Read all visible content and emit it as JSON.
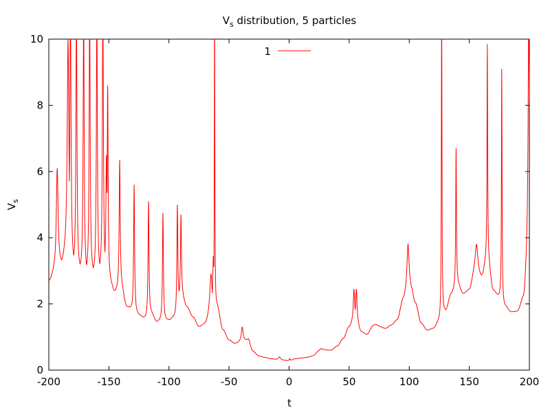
{
  "chart_data": {
    "type": "line",
    "title": "V",
    "title_sub": "s",
    "title_rest": " distribution, 5 particles",
    "xlabel": "t",
    "ylabel": "V",
    "ylabel_sub": "s",
    "xlim": [
      -200,
      200
    ],
    "ylim": [
      0,
      10
    ],
    "xticks": [
      -200,
      -150,
      -100,
      -50,
      0,
      50,
      100,
      150,
      200
    ],
    "yticks": [
      0,
      2,
      4,
      6,
      8,
      10
    ],
    "grid": false,
    "legend_position": "top-center",
    "color": "#ff0000",
    "base_points": [
      [
        -200,
        2.65
      ],
      [
        -195,
        2.9
      ],
      [
        -190,
        3.15
      ],
      [
        -185,
        3.5
      ],
      [
        -180,
        3.1
      ],
      [
        -175,
        3.0
      ],
      [
        -170,
        2.85
      ],
      [
        -165,
        2.9
      ],
      [
        -160,
        2.8
      ],
      [
        -155,
        3.0
      ],
      [
        -150,
        2.7
      ],
      [
        -145,
        2.35
      ],
      [
        -140,
        2.5
      ],
      [
        -135,
        1.9
      ],
      [
        -130,
        1.8
      ],
      [
        -125,
        1.65
      ],
      [
        -120,
        1.55
      ],
      [
        -115,
        1.7
      ],
      [
        -110,
        1.45
      ],
      [
        -105,
        1.5
      ],
      [
        -100,
        1.5
      ],
      [
        -95,
        1.6
      ],
      [
        -90,
        2.3
      ],
      [
        -85,
        1.9
      ],
      [
        -80,
        1.6
      ],
      [
        -75,
        1.3
      ],
      [
        -70,
        1.35
      ],
      [
        -65,
        1.6
      ],
      [
        -60,
        1.9
      ],
      [
        -55,
        1.2
      ],
      [
        -50,
        0.9
      ],
      [
        -45,
        0.8
      ],
      [
        -40,
        0.85
      ],
      [
        -35,
        0.9
      ],
      [
        -30,
        0.55
      ],
      [
        -25,
        0.42
      ],
      [
        -20,
        0.38
      ],
      [
        -15,
        0.34
      ],
      [
        -10,
        0.32
      ],
      [
        -5,
        0.3
      ],
      [
        0,
        0.28
      ],
      [
        5,
        0.34
      ],
      [
        10,
        0.36
      ],
      [
        15,
        0.38
      ],
      [
        20,
        0.42
      ],
      [
        25,
        0.55
      ],
      [
        30,
        0.6
      ],
      [
        35,
        0.6
      ],
      [
        40,
        0.72
      ],
      [
        45,
        0.95
      ],
      [
        50,
        1.3
      ],
      [
        55,
        1.6
      ],
      [
        60,
        1.15
      ],
      [
        65,
        1.05
      ],
      [
        70,
        1.3
      ],
      [
        75,
        1.3
      ],
      [
        80,
        1.25
      ],
      [
        85,
        1.35
      ],
      [
        90,
        1.5
      ],
      [
        95,
        2.1
      ],
      [
        100,
        2.5
      ],
      [
        105,
        2.0
      ],
      [
        110,
        1.4
      ],
      [
        115,
        1.2
      ],
      [
        120,
        1.25
      ],
      [
        125,
        1.45
      ],
      [
        130,
        1.75
      ],
      [
        135,
        2.3
      ],
      [
        140,
        2.6
      ],
      [
        145,
        2.3
      ],
      [
        150,
        2.4
      ],
      [
        155,
        3.0
      ],
      [
        160,
        2.8
      ],
      [
        165,
        3.4
      ],
      [
        170,
        2.4
      ],
      [
        175,
        2.2
      ],
      [
        180,
        1.9
      ],
      [
        185,
        1.75
      ],
      [
        190,
        1.75
      ],
      [
        195,
        2.1
      ],
      [
        200,
        4.0
      ]
    ],
    "peaks": [
      {
        "x": -193,
        "y": 6.1,
        "w": 0.9
      },
      {
        "x": -184,
        "y": 10.0,
        "w": 0.8
      },
      {
        "x": -182,
        "y": 11.0,
        "w": 0.6
      },
      {
        "x": -177,
        "y": 11.0,
        "w": 0.5
      },
      {
        "x": -171,
        "y": 11.0,
        "w": 0.5
      },
      {
        "x": -166,
        "y": 11.0,
        "w": 0.5
      },
      {
        "x": -160,
        "y": 11.0,
        "w": 0.5
      },
      {
        "x": -155,
        "y": 11.0,
        "w": 0.5
      },
      {
        "x": -152,
        "y": 6.5,
        "w": 0.6
      },
      {
        "x": -151,
        "y": 8.6,
        "w": 0.45
      },
      {
        "x": -141,
        "y": 6.35,
        "w": 0.5
      },
      {
        "x": -129,
        "y": 5.6,
        "w": 0.45
      },
      {
        "x": -117,
        "y": 5.1,
        "w": 0.45
      },
      {
        "x": -105,
        "y": 4.75,
        "w": 0.45
      },
      {
        "x": -93,
        "y": 5.0,
        "w": 0.45
      },
      {
        "x": -90,
        "y": 4.7,
        "w": 0.45
      },
      {
        "x": -65,
        "y": 2.9,
        "w": 1.2
      },
      {
        "x": -63,
        "y": 3.45,
        "w": 0.7
      },
      {
        "x": -62,
        "y": 11.0,
        "w": 0.25
      },
      {
        "x": -39,
        "y": 1.3,
        "w": 0.9
      },
      {
        "x": -34,
        "y": 0.95,
        "w": 1.0
      },
      {
        "x": -8,
        "y": 0.4,
        "w": 1.0
      },
      {
        "x": -3,
        "y": 0.3,
        "w": 0.5
      },
      {
        "x": 0.5,
        "y": 0.35,
        "w": 0.5
      },
      {
        "x": 27,
        "y": 0.65,
        "w": 2.0
      },
      {
        "x": 54,
        "y": 2.45,
        "w": 0.6
      },
      {
        "x": 56,
        "y": 2.45,
        "w": 0.6
      },
      {
        "x": 72,
        "y": 1.38,
        "w": 2.5
      },
      {
        "x": 99,
        "y": 3.8,
        "w": 1.0
      },
      {
        "x": 102,
        "y": 2.5,
        "w": 1.0
      },
      {
        "x": 127,
        "y": 11.0,
        "w": 0.3
      },
      {
        "x": 139,
        "y": 6.7,
        "w": 0.35
      },
      {
        "x": 156,
        "y": 3.8,
        "w": 1.2
      },
      {
        "x": 165,
        "y": 9.85,
        "w": 0.3
      },
      {
        "x": 177,
        "y": 9.1,
        "w": 0.3
      },
      {
        "x": 199.5,
        "y": 11.0,
        "w": 0.6
      }
    ],
    "series": [
      {
        "name": "1",
        "color": "#ff0000"
      }
    ]
  }
}
